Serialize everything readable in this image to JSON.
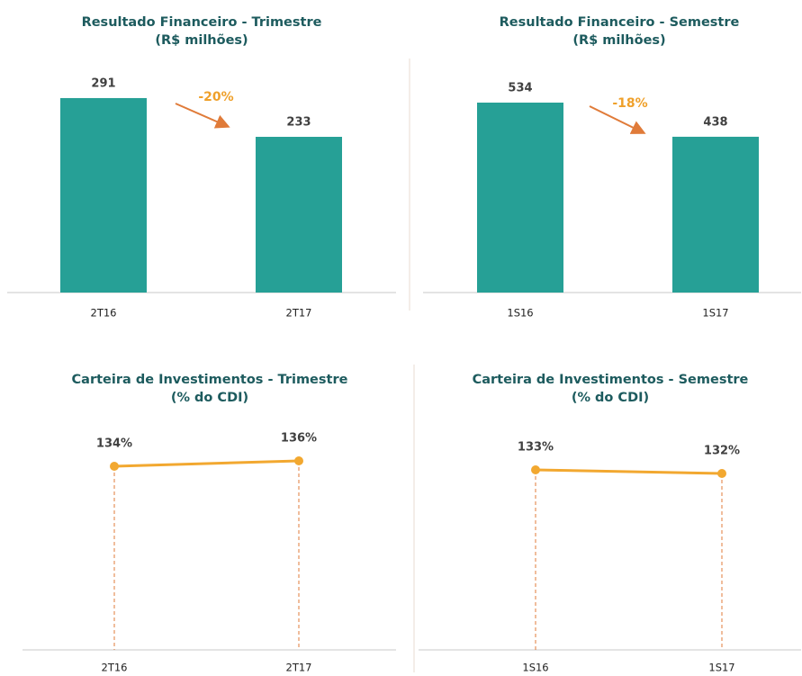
{
  "chart_data": [
    {
      "type": "bar",
      "title": "Resultado Financeiro - Trimestre",
      "subtitle": "(R$ milhões)",
      "categories": [
        "2T16",
        "2T17"
      ],
      "values": [
        291,
        233
      ],
      "color": "#26a096",
      "ylim": [
        0,
        330
      ],
      "annotation": "-20%"
    },
    {
      "type": "bar",
      "title": "Resultado Financeiro - Semestre",
      "subtitle": "(R$ milhões)",
      "categories": [
        "1S16",
        "1S17"
      ],
      "values": [
        534,
        438
      ],
      "color": "#26a096",
      "ylim": [
        0,
        620
      ],
      "annotation": "-18%"
    },
    {
      "type": "line",
      "title": "Carteira de Investimentos - Trimestre",
      "subtitle": "(% do CDI)",
      "categories": [
        "2T16",
        "2T17"
      ],
      "values": [
        134,
        136
      ],
      "value_labels": [
        "134%",
        "136%"
      ],
      "color": "#f2a830",
      "ylim": [
        66,
        140
      ]
    },
    {
      "type": "line",
      "title": "Carteira de Investimentos - Semestre",
      "subtitle": "(% do CDI)",
      "categories": [
        "1S16",
        "1S17"
      ],
      "values": [
        133,
        132
      ],
      "value_labels": [
        "133%",
        "132%"
      ],
      "color": "#f2a830",
      "ylim": [
        83,
        140
      ]
    }
  ]
}
